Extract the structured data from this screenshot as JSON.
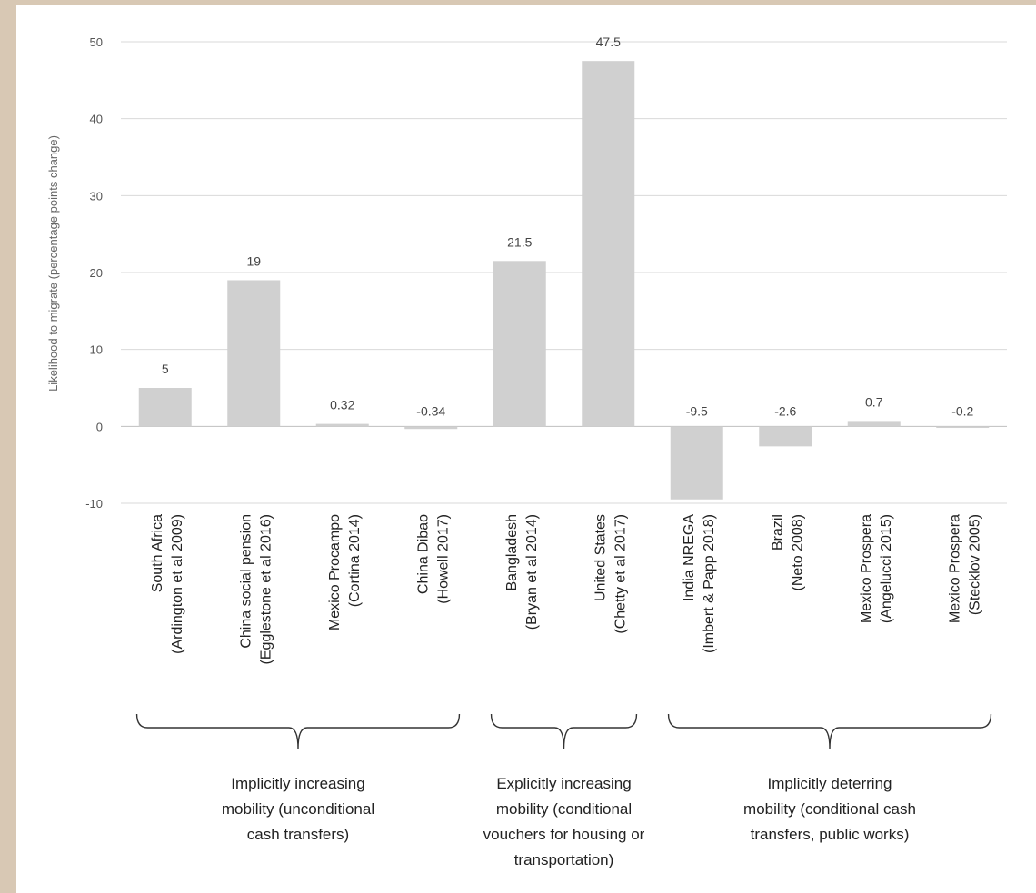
{
  "chart_data": {
    "type": "bar",
    "ylabel": "Likelihood to migrate (percentage points change)",
    "ylim": [
      -10,
      50
    ],
    "yticks": [
      -10,
      0,
      10,
      20,
      30,
      40,
      50
    ],
    "grid": true,
    "categories": [
      {
        "line1": "South Africa",
        "line2": "(Ardington et al 2009)"
      },
      {
        "line1": "China social pension",
        "line2": "(Egglestone et al 2016)"
      },
      {
        "line1": "Mexico Procampo",
        "line2": "(Cortina 2014)"
      },
      {
        "line1": "China Dibao",
        "line2": "(Howell 2017)"
      },
      {
        "line1": "Bangladesh",
        "line2": "(Bryan et al 2014)"
      },
      {
        "line1": "United States",
        "line2": "(Chetty et al 2017)"
      },
      {
        "line1": "India NREGA",
        "line2": "(Imbert & Papp 2018)"
      },
      {
        "line1": "Brazil",
        "line2": "(Neto 2008)"
      },
      {
        "line1": "Mexico Prospera",
        "line2": "(Angelucci 2015)"
      },
      {
        "line1": "Mexico Prospera",
        "line2": "(Stecklov 2005)"
      }
    ],
    "values": [
      5,
      19,
      0.32,
      -0.34,
      21.5,
      47.5,
      -9.5,
      -2.6,
      0.7,
      -0.2
    ],
    "value_labels": [
      "5",
      "19",
      "0.32",
      "-0.34",
      "21.5",
      "47.5",
      "-9.5",
      "-2.6",
      "0.7",
      "-0.2"
    ],
    "bar_color": "#d0d0d0",
    "groups": [
      {
        "from": 0,
        "to": 3,
        "lines": [
          "Implicitly increasing",
          "mobility (unconditional",
          "cash transfers)"
        ]
      },
      {
        "from": 4,
        "to": 5,
        "lines": [
          "Explicitly increasing",
          "mobility (conditional",
          "vouchers for housing or",
          "transportation)"
        ]
      },
      {
        "from": 6,
        "to": 9,
        "lines": [
          "Implicitly deterring",
          "mobility (conditional cash",
          "transfers, public works)"
        ]
      }
    ]
  }
}
